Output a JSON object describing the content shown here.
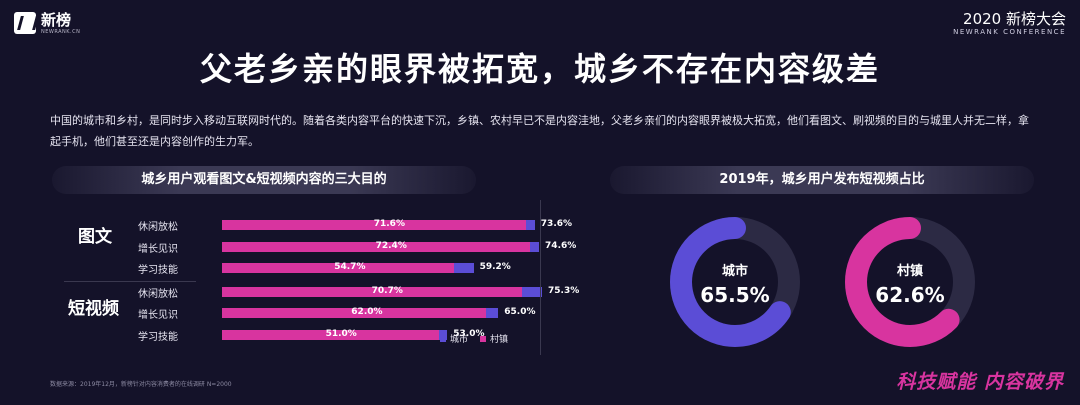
{
  "header": {
    "logo_text": "新榜",
    "logo_sub": "NEWRANK.CN",
    "conf_title": "2020 新榜大会",
    "conf_sub": "NEWRANK CONFERENCE"
  },
  "title": "父老乡亲的眼界被拓宽，城乡不存在内容级差",
  "intro": "中国的城市和乡村，是同时步入移动互联网时代的。随着各类内容平台的快速下沉，乡镇、农村早已不是内容洼地，父老乡亲们的内容眼界被极大拓宽，他们看图文、刷视频的目的与城里人并无二样，拿起手机，他们甚至还是内容创作的生力军。",
  "source": "数据来源：2019年12月，新榜针对内容消费者的在线调研 N=2000",
  "slogan": "科技赋能 内容破界",
  "colors": {
    "city": "#5b4dd6",
    "town": "#d8349f",
    "background": "#141229"
  },
  "chart_data": [
    {
      "type": "bar",
      "title": "城乡用户观看图文&短视频内容的三大目的",
      "legend": {
        "placement": "bottom-right",
        "entries": [
          "城市",
          "村镇"
        ]
      },
      "groups": [
        {
          "name": "图文",
          "categories": [
            "休闲放松",
            "增长见识",
            "学习技能"
          ],
          "series": [
            {
              "name": "村镇",
              "values": [
                71.6,
                72.4,
                54.7
              ],
              "labels": [
                "71.6%",
                "72.4%",
                "54.7%"
              ]
            },
            {
              "name": "城市",
              "values": [
                73.6,
                74.6,
                59.2
              ],
              "labels": [
                "73.6%",
                "74.6%",
                "59.2%"
              ]
            }
          ]
        },
        {
          "name": "短视频",
          "categories": [
            "休闲放松",
            "增长见识",
            "学习技能"
          ],
          "series": [
            {
              "name": "村镇",
              "values": [
                70.7,
                62.0,
                51.0
              ],
              "labels": [
                "70.7%",
                "62.0%",
                "51.0%"
              ]
            },
            {
              "name": "城市",
              "values": [
                75.3,
                65.0,
                53.0
              ],
              "labels": [
                "75.3%",
                "65.0%",
                "53.0%"
              ]
            }
          ]
        }
      ]
    },
    {
      "type": "pie",
      "title": "2019年，城乡用户发布短视频占比",
      "series": [
        {
          "name": "城市",
          "value": 65.5,
          "label": "65.5%",
          "color": "#5b4dd6"
        },
        {
          "name": "村镇",
          "value": 62.6,
          "label": "62.6%",
          "color": "#d8349f"
        }
      ]
    }
  ]
}
